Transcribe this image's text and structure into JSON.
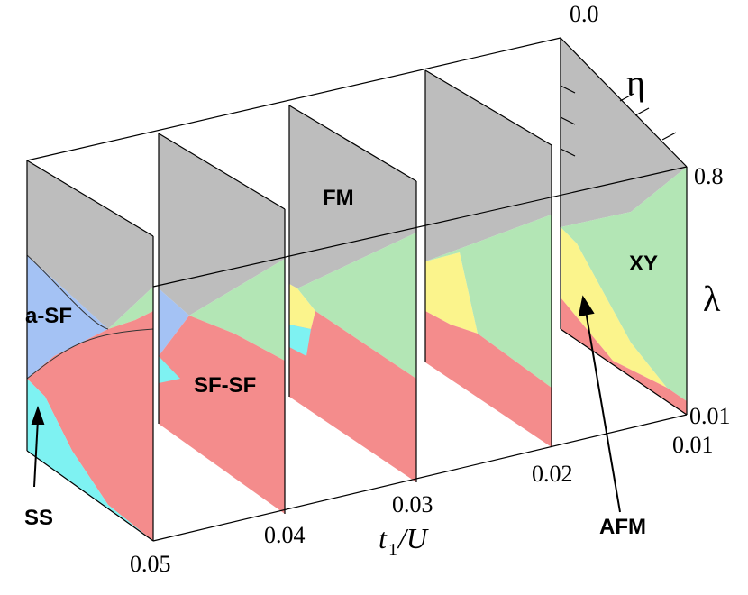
{
  "chart_data": {
    "type": "area",
    "title": "",
    "axes": {
      "t1_over_U": {
        "label_main": "t",
        "label_sub": "1",
        "label_rest": " /U",
        "ticks": [
          "0.05",
          "0.04",
          "0.03",
          "0.02",
          "0.01"
        ]
      },
      "eta": {
        "label": "η",
        "ticks": [
          "0.0",
          "0.8"
        ]
      },
      "lambda": {
        "label": "λ",
        "ticks": [
          "0.01"
        ]
      }
    },
    "phases": [
      {
        "name": "a-SF",
        "color": "#a4c2f4"
      },
      {
        "name": "SS",
        "color": "#7ef2f2"
      },
      {
        "name": "SF-SF",
        "color": "#f48c8c"
      },
      {
        "name": "FM",
        "color": "#bdbdbd"
      },
      {
        "name": "XY",
        "color": "#b3e6b5"
      },
      {
        "name": "AFM",
        "color": "#fbf48c"
      }
    ],
    "panels": [
      "0.05",
      "0.04",
      "0.03",
      "0.02",
      "0.01"
    ]
  },
  "labels": {
    "a_sf": "a-SF",
    "ss": "SS",
    "sf_sf": "SF-SF",
    "fm": "FM",
    "xy": "XY",
    "afm": "AFM",
    "eta": "η",
    "lambda": "λ",
    "eta_top": "0.0",
    "eta_bottom": "0.8",
    "lambda_a": "0.01",
    "t_005": "0.05",
    "t_004": "0.04",
    "t_003": "0.03",
    "t_002": "0.02",
    "t_001": "0.01",
    "t_label": "t",
    "t_sub": "1",
    "t_rest": " /U"
  }
}
